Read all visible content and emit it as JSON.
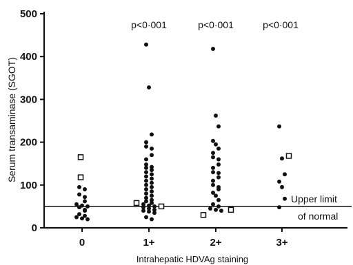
{
  "chart_data": {
    "type": "scatter",
    "title": "",
    "xlabel": "Intrahepatic HDVAg staining",
    "ylabel": "Serum transaminase (SGOT)",
    "categories": [
      "0",
      "1+",
      "2+",
      "3+"
    ],
    "yticks": [
      "0",
      "100",
      "200",
      "300",
      "400",
      "500"
    ],
    "ylim": [
      0,
      500
    ],
    "grid": false,
    "legend": "none",
    "p_values": [
      "",
      "p<0·001",
      "p<0·001",
      "p<0·001"
    ],
    "reference_line": {
      "value": 50,
      "label_line1": "Upper limit",
      "label_line2": "of normal"
    },
    "series": [
      {
        "marker": "filled-circle",
        "points": [
          {
            "x": "0",
            "y": 95
          },
          {
            "x": "0",
            "y": 90
          },
          {
            "x": "0",
            "y": 78
          },
          {
            "x": "0",
            "y": 72
          },
          {
            "x": "0",
            "y": 62
          },
          {
            "x": "0",
            "y": 55
          },
          {
            "x": "0",
            "y": 52
          },
          {
            "x": "0",
            "y": 50
          },
          {
            "x": "0",
            "y": 48
          },
          {
            "x": "0",
            "y": 42
          },
          {
            "x": "0",
            "y": 40
          },
          {
            "x": "0",
            "y": 32
          },
          {
            "x": "0",
            "y": 28
          },
          {
            "x": "0",
            "y": 25
          },
          {
            "x": "0",
            "y": 22
          },
          {
            "x": "0",
            "y": 20
          },
          {
            "x": "1+",
            "y": 428
          },
          {
            "x": "1+",
            "y": 328
          },
          {
            "x": "1+",
            "y": 218
          },
          {
            "x": "1+",
            "y": 200
          },
          {
            "x": "1+",
            "y": 190
          },
          {
            "x": "1+",
            "y": 185
          },
          {
            "x": "1+",
            "y": 170
          },
          {
            "x": "1+",
            "y": 160
          },
          {
            "x": "1+",
            "y": 148
          },
          {
            "x": "1+",
            "y": 142
          },
          {
            "x": "1+",
            "y": 140
          },
          {
            "x": "1+",
            "y": 135
          },
          {
            "x": "1+",
            "y": 130
          },
          {
            "x": "1+",
            "y": 125
          },
          {
            "x": "1+",
            "y": 120
          },
          {
            "x": "1+",
            "y": 115
          },
          {
            "x": "1+",
            "y": 110
          },
          {
            "x": "1+",
            "y": 105
          },
          {
            "x": "1+",
            "y": 100
          },
          {
            "x": "1+",
            "y": 95
          },
          {
            "x": "1+",
            "y": 90
          },
          {
            "x": "1+",
            "y": 85
          },
          {
            "x": "1+",
            "y": 80
          },
          {
            "x": "1+",
            "y": 75
          },
          {
            "x": "1+",
            "y": 70
          },
          {
            "x": "1+",
            "y": 65
          },
          {
            "x": "1+",
            "y": 62
          },
          {
            "x": "1+",
            "y": 58
          },
          {
            "x": "1+",
            "y": 55
          },
          {
            "x": "1+",
            "y": 52
          },
          {
            "x": "1+",
            "y": 50
          },
          {
            "x": "1+",
            "y": 48
          },
          {
            "x": "1+",
            "y": 45
          },
          {
            "x": "1+",
            "y": 42
          },
          {
            "x": "1+",
            "y": 40
          },
          {
            "x": "1+",
            "y": 38
          },
          {
            "x": "1+",
            "y": 35
          },
          {
            "x": "1+",
            "y": 25
          },
          {
            "x": "1+",
            "y": 20
          },
          {
            "x": "2+",
            "y": 418
          },
          {
            "x": "2+",
            "y": 262
          },
          {
            "x": "2+",
            "y": 237
          },
          {
            "x": "2+",
            "y": 203
          },
          {
            "x": "2+",
            "y": 195
          },
          {
            "x": "2+",
            "y": 185
          },
          {
            "x": "2+",
            "y": 175
          },
          {
            "x": "2+",
            "y": 165
          },
          {
            "x": "2+",
            "y": 160
          },
          {
            "x": "2+",
            "y": 148
          },
          {
            "x": "2+",
            "y": 140
          },
          {
            "x": "2+",
            "y": 130
          },
          {
            "x": "2+",
            "y": 128
          },
          {
            "x": "2+",
            "y": 118
          },
          {
            "x": "2+",
            "y": 110
          },
          {
            "x": "2+",
            "y": 100
          },
          {
            "x": "2+",
            "y": 95
          },
          {
            "x": "2+",
            "y": 90
          },
          {
            "x": "2+",
            "y": 82
          },
          {
            "x": "2+",
            "y": 75
          },
          {
            "x": "2+",
            "y": 65
          },
          {
            "x": "2+",
            "y": 55
          },
          {
            "x": "2+",
            "y": 50
          },
          {
            "x": "2+",
            "y": 45
          },
          {
            "x": "2+",
            "y": 42
          },
          {
            "x": "2+",
            "y": 40
          },
          {
            "x": "3+",
            "y": 237
          },
          {
            "x": "3+",
            "y": 162
          },
          {
            "x": "3+",
            "y": 125
          },
          {
            "x": "3+",
            "y": 108
          },
          {
            "x": "3+",
            "y": 95
          },
          {
            "x": "3+",
            "y": 68
          },
          {
            "x": "3+",
            "y": 48
          }
        ]
      },
      {
        "marker": "open-square",
        "points": [
          {
            "x": "0",
            "y": 165
          },
          {
            "x": "0",
            "y": 118
          },
          {
            "x": "1+",
            "y": 58
          },
          {
            "x": "1+",
            "y": 50
          },
          {
            "x": "2+",
            "y": 30
          },
          {
            "x": "2+",
            "y": 42
          },
          {
            "x": "3+",
            "y": 168
          }
        ]
      }
    ]
  }
}
